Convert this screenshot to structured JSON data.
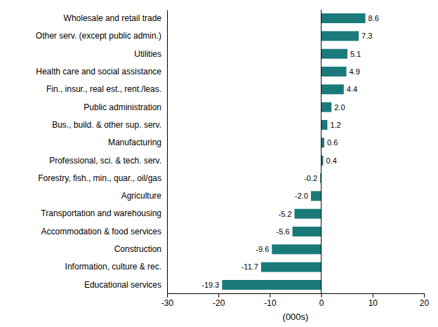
{
  "chart_data": {
    "type": "bar",
    "orientation": "horizontal",
    "categories": [
      "Educational services",
      "Information, culture & rec.",
      "Construction",
      "Accommodation & food services",
      "Transportation and warehousing",
      "Agriculture",
      "Forestry, fish., min., quar., oil/gas",
      "Professional, sci. & tech. serv.",
      "Manufacturing",
      "Bus., build. & other sup. serv.",
      "Public administration",
      "Fin., insur., real est., rent./leas.",
      "Health care and social assistance",
      "Utilities",
      "Other serv. (except public admin.)",
      "Wholesale and retail trade"
    ],
    "values": [
      -19.3,
      -11.7,
      -9.6,
      -5.6,
      -5.2,
      -2.0,
      -0.2,
      0.4,
      0.6,
      1.2,
      2.0,
      4.4,
      4.9,
      5.1,
      7.3,
      8.6
    ],
    "value_labels": [
      "-19.3",
      "-11.7",
      "-9.6",
      "-5.6",
      "-5.2",
      "-2.0",
      "-0.2",
      "0.4",
      "0.6",
      "1.2",
      "2.0",
      "4.4",
      "4.9",
      "5.1",
      "7.3",
      "8.6"
    ],
    "color": "#1a7a7a",
    "xlim": [
      -30,
      20
    ],
    "xticks": [
      -30,
      -20,
      -10,
      0,
      10,
      20
    ],
    "xlabel": "(000s)",
    "grid": false,
    "data_labels": true
  }
}
